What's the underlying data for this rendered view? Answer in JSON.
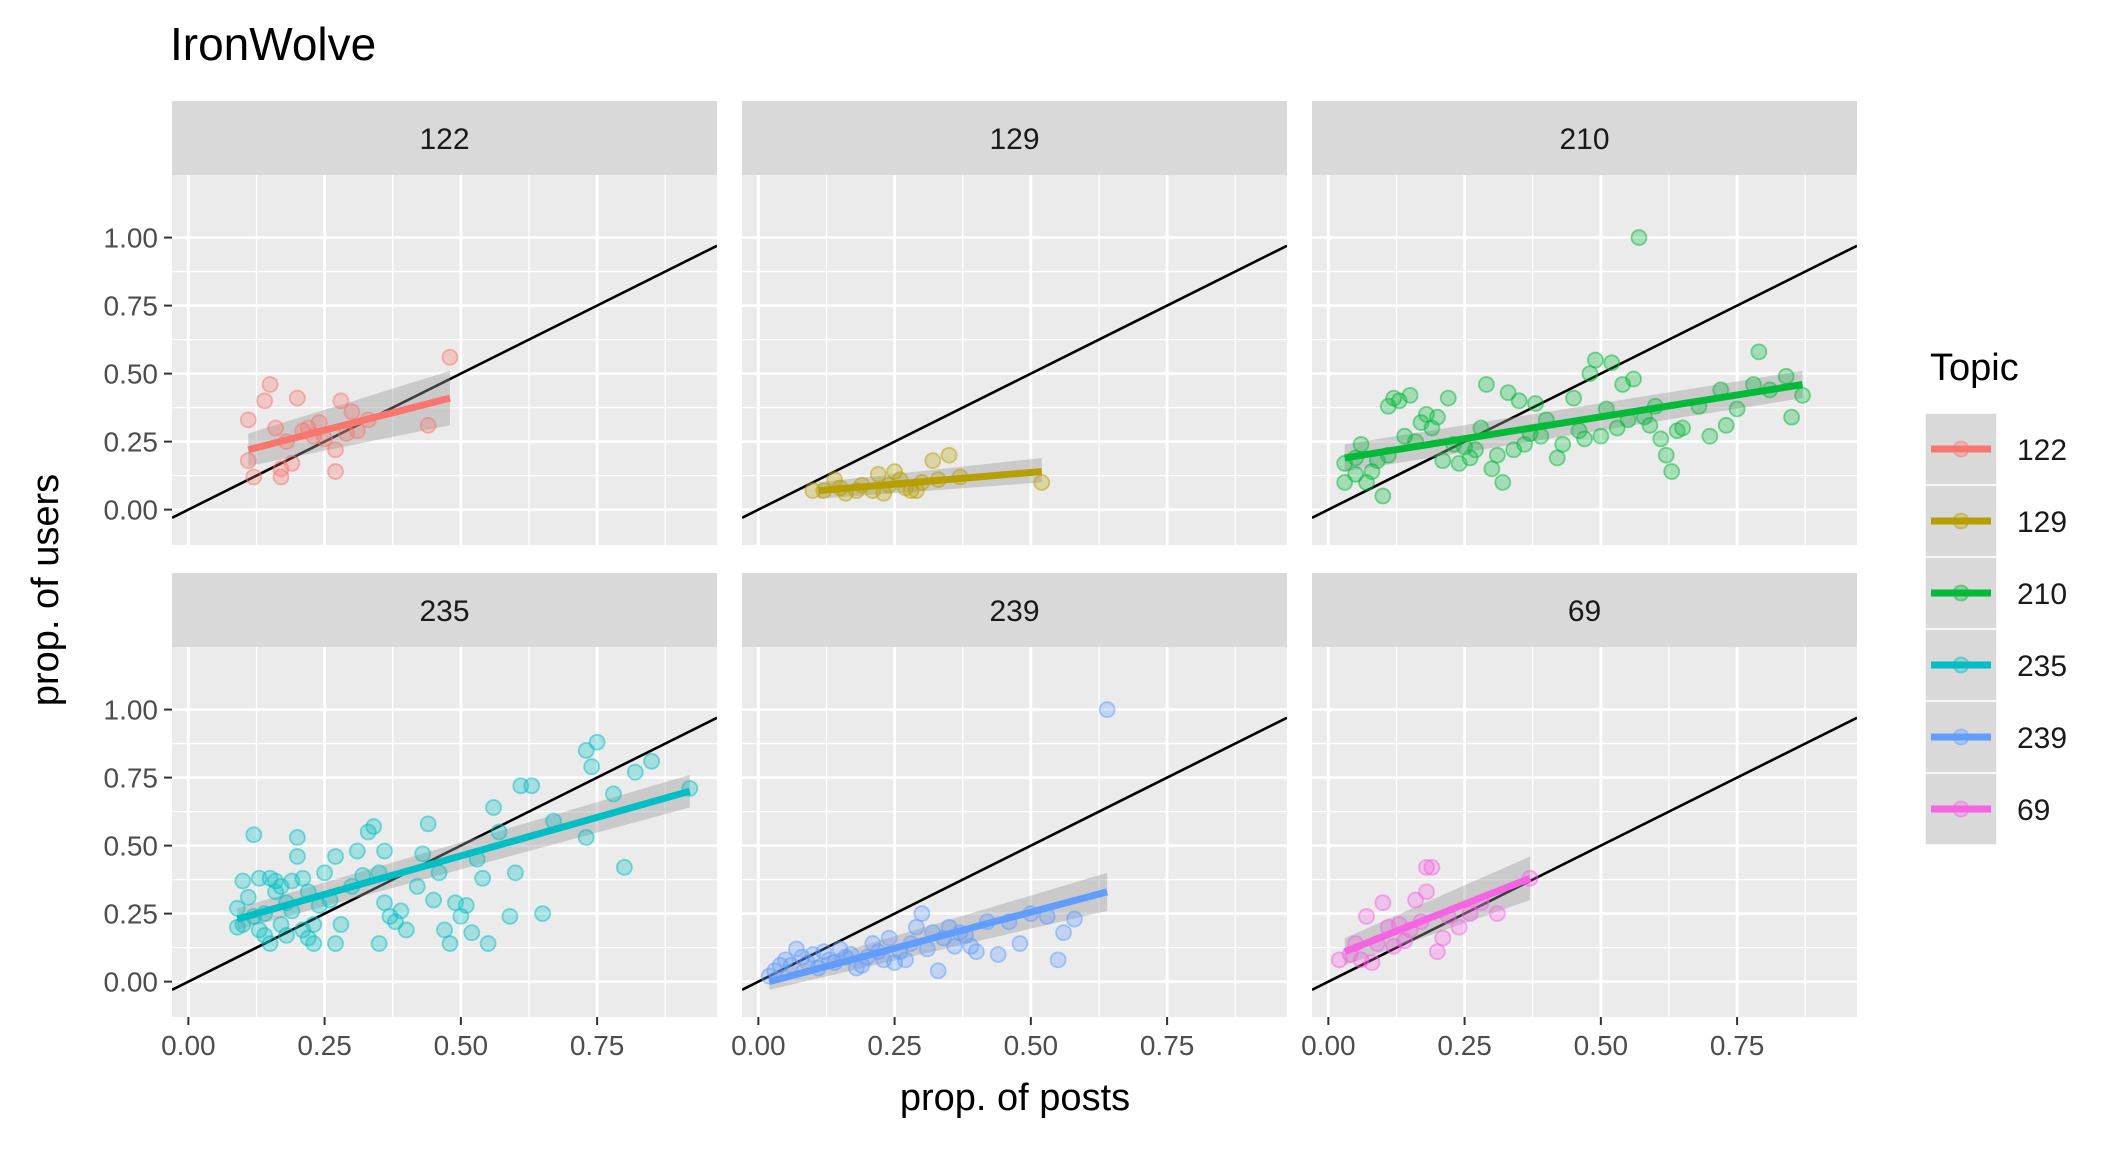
{
  "chart_data": {
    "type": "scatter",
    "title": "IronWolve",
    "xlabel": "prop. of posts",
    "ylabel": "prop. of users",
    "xlim": [
      -0.03,
      0.97
    ],
    "ylim": [
      -0.13,
      1.23
    ],
    "x_ticks": [
      0.0,
      0.25,
      0.5,
      0.75
    ],
    "x_tick_labels": [
      "0.00",
      "0.25",
      "0.50",
      "0.75"
    ],
    "y_ticks": [
      0.0,
      0.25,
      0.5,
      0.75,
      1.0
    ],
    "y_tick_labels": [
      "0.00",
      "0.25",
      "0.50",
      "0.75",
      "1.00"
    ],
    "reference_line": "y = x",
    "grid": true,
    "legend": {
      "title": "Topic",
      "placement": "right",
      "entries": [
        "122",
        "129",
        "210",
        "235",
        "239",
        "69"
      ]
    },
    "panels": [
      {
        "label": "122",
        "color": "#F8766D",
        "fit": {
          "x": [
            0.11,
            0.48
          ],
          "y": [
            0.22,
            0.41
          ],
          "se_lo": [
            0.16,
            0.31
          ],
          "se_hi": [
            0.28,
            0.51
          ]
        },
        "points": [
          [
            0.11,
            0.33
          ],
          [
            0.11,
            0.18
          ],
          [
            0.12,
            0.12
          ],
          [
            0.14,
            0.4
          ],
          [
            0.15,
            0.46
          ],
          [
            0.16,
            0.3
          ],
          [
            0.17,
            0.15
          ],
          [
            0.17,
            0.12
          ],
          [
            0.18,
            0.25
          ],
          [
            0.19,
            0.17
          ],
          [
            0.2,
            0.41
          ],
          [
            0.21,
            0.29
          ],
          [
            0.22,
            0.3
          ],
          [
            0.23,
            0.27
          ],
          [
            0.24,
            0.32
          ],
          [
            0.25,
            0.26
          ],
          [
            0.27,
            0.14
          ],
          [
            0.27,
            0.22
          ],
          [
            0.28,
            0.4
          ],
          [
            0.29,
            0.28
          ],
          [
            0.3,
            0.36
          ],
          [
            0.31,
            0.29
          ],
          [
            0.33,
            0.33
          ],
          [
            0.44,
            0.31
          ],
          [
            0.48,
            0.56
          ]
        ]
      },
      {
        "label": "129",
        "color": "#B79F00",
        "fit": {
          "x": [
            0.11,
            0.52
          ],
          "y": [
            0.07,
            0.14
          ],
          "se_lo": [
            0.04,
            0.1
          ],
          "se_hi": [
            0.1,
            0.19
          ]
        },
        "points": [
          [
            0.1,
            0.07
          ],
          [
            0.12,
            0.07
          ],
          [
            0.14,
            0.11
          ],
          [
            0.15,
            0.08
          ],
          [
            0.16,
            0.06
          ],
          [
            0.18,
            0.07
          ],
          [
            0.19,
            0.09
          ],
          [
            0.21,
            0.07
          ],
          [
            0.22,
            0.13
          ],
          [
            0.23,
            0.06
          ],
          [
            0.24,
            0.09
          ],
          [
            0.25,
            0.14
          ],
          [
            0.26,
            0.11
          ],
          [
            0.27,
            0.08
          ],
          [
            0.28,
            0.07
          ],
          [
            0.29,
            0.07
          ],
          [
            0.3,
            0.1
          ],
          [
            0.32,
            0.18
          ],
          [
            0.33,
            0.11
          ],
          [
            0.35,
            0.2
          ],
          [
            0.37,
            0.12
          ],
          [
            0.52,
            0.1
          ]
        ]
      },
      {
        "label": "210",
        "color": "#00BA38",
        "fit": {
          "x": [
            0.03,
            0.87
          ],
          "y": [
            0.19,
            0.46
          ],
          "se_lo": [
            0.14,
            0.41
          ],
          "se_hi": [
            0.24,
            0.51
          ]
        },
        "points": [
          [
            0.03,
            0.17
          ],
          [
            0.03,
            0.1
          ],
          [
            0.05,
            0.13
          ],
          [
            0.05,
            0.19
          ],
          [
            0.06,
            0.24
          ],
          [
            0.07,
            0.1
          ],
          [
            0.08,
            0.14
          ],
          [
            0.09,
            0.18
          ],
          [
            0.1,
            0.05
          ],
          [
            0.11,
            0.2
          ],
          [
            0.11,
            0.38
          ],
          [
            0.12,
            0.41
          ],
          [
            0.13,
            0.4
          ],
          [
            0.14,
            0.27
          ],
          [
            0.15,
            0.42
          ],
          [
            0.16,
            0.25
          ],
          [
            0.17,
            0.32
          ],
          [
            0.18,
            0.35
          ],
          [
            0.19,
            0.3
          ],
          [
            0.2,
            0.34
          ],
          [
            0.21,
            0.18
          ],
          [
            0.22,
            0.41
          ],
          [
            0.23,
            0.24
          ],
          [
            0.24,
            0.17
          ],
          [
            0.25,
            0.23
          ],
          [
            0.26,
            0.19
          ],
          [
            0.27,
            0.22
          ],
          [
            0.28,
            0.3
          ],
          [
            0.29,
            0.46
          ],
          [
            0.3,
            0.15
          ],
          [
            0.31,
            0.2
          ],
          [
            0.32,
            0.1
          ],
          [
            0.33,
            0.43
          ],
          [
            0.34,
            0.22
          ],
          [
            0.35,
            0.4
          ],
          [
            0.36,
            0.24
          ],
          [
            0.37,
            0.28
          ],
          [
            0.38,
            0.39
          ],
          [
            0.39,
            0.27
          ],
          [
            0.4,
            0.33
          ],
          [
            0.42,
            0.19
          ],
          [
            0.43,
            0.24
          ],
          [
            0.45,
            0.41
          ],
          [
            0.46,
            0.29
          ],
          [
            0.47,
            0.26
          ],
          [
            0.48,
            0.5
          ],
          [
            0.49,
            0.55
          ],
          [
            0.5,
            0.27
          ],
          [
            0.51,
            0.37
          ],
          [
            0.52,
            0.54
          ],
          [
            0.53,
            0.3
          ],
          [
            0.54,
            0.46
          ],
          [
            0.55,
            0.33
          ],
          [
            0.56,
            0.48
          ],
          [
            0.57,
            1.0
          ],
          [
            0.58,
            0.34
          ],
          [
            0.59,
            0.31
          ],
          [
            0.6,
            0.38
          ],
          [
            0.61,
            0.26
          ],
          [
            0.62,
            0.2
          ],
          [
            0.63,
            0.14
          ],
          [
            0.64,
            0.29
          ],
          [
            0.65,
            0.3
          ],
          [
            0.68,
            0.38
          ],
          [
            0.7,
            0.27
          ],
          [
            0.72,
            0.44
          ],
          [
            0.73,
            0.31
          ],
          [
            0.75,
            0.37
          ],
          [
            0.78,
            0.46
          ],
          [
            0.79,
            0.58
          ],
          [
            0.81,
            0.44
          ],
          [
            0.84,
            0.49
          ],
          [
            0.85,
            0.34
          ],
          [
            0.87,
            0.42
          ]
        ]
      },
      {
        "label": "235",
        "color": "#00BFC4",
        "fit": {
          "x": [
            0.09,
            0.92
          ],
          "y": [
            0.23,
            0.7
          ],
          "se_lo": [
            0.19,
            0.64
          ],
          "se_hi": [
            0.27,
            0.76
          ]
        },
        "points": [
          [
            0.09,
            0.27
          ],
          [
            0.09,
            0.2
          ],
          [
            0.1,
            0.37
          ],
          [
            0.1,
            0.21
          ],
          [
            0.11,
            0.31
          ],
          [
            0.12,
            0.54
          ],
          [
            0.12,
            0.24
          ],
          [
            0.13,
            0.38
          ],
          [
            0.13,
            0.19
          ],
          [
            0.14,
            0.25
          ],
          [
            0.14,
            0.17
          ],
          [
            0.15,
            0.38
          ],
          [
            0.15,
            0.14
          ],
          [
            0.16,
            0.37
          ],
          [
            0.16,
            0.33
          ],
          [
            0.17,
            0.21
          ],
          [
            0.17,
            0.35
          ],
          [
            0.18,
            0.17
          ],
          [
            0.18,
            0.29
          ],
          [
            0.19,
            0.37
          ],
          [
            0.19,
            0.26
          ],
          [
            0.2,
            0.46
          ],
          [
            0.2,
            0.53
          ],
          [
            0.21,
            0.38
          ],
          [
            0.21,
            0.19
          ],
          [
            0.22,
            0.33
          ],
          [
            0.22,
            0.16
          ],
          [
            0.23,
            0.14
          ],
          [
            0.23,
            0.21
          ],
          [
            0.24,
            0.28
          ],
          [
            0.25,
            0.4
          ],
          [
            0.26,
            0.3
          ],
          [
            0.27,
            0.14
          ],
          [
            0.27,
            0.46
          ],
          [
            0.28,
            0.21
          ],
          [
            0.3,
            0.35
          ],
          [
            0.31,
            0.48
          ],
          [
            0.32,
            0.39
          ],
          [
            0.33,
            0.55
          ],
          [
            0.34,
            0.57
          ],
          [
            0.35,
            0.14
          ],
          [
            0.35,
            0.4
          ],
          [
            0.36,
            0.29
          ],
          [
            0.36,
            0.48
          ],
          [
            0.37,
            0.24
          ],
          [
            0.38,
            0.22
          ],
          [
            0.39,
            0.26
          ],
          [
            0.4,
            0.19
          ],
          [
            0.42,
            0.35
          ],
          [
            0.43,
            0.47
          ],
          [
            0.44,
            0.58
          ],
          [
            0.45,
            0.3
          ],
          [
            0.46,
            0.4
          ],
          [
            0.47,
            0.19
          ],
          [
            0.48,
            0.14
          ],
          [
            0.49,
            0.29
          ],
          [
            0.5,
            0.24
          ],
          [
            0.51,
            0.28
          ],
          [
            0.52,
            0.18
          ],
          [
            0.53,
            0.45
          ],
          [
            0.54,
            0.38
          ],
          [
            0.55,
            0.14
          ],
          [
            0.56,
            0.64
          ],
          [
            0.57,
            0.55
          ],
          [
            0.59,
            0.24
          ],
          [
            0.6,
            0.4
          ],
          [
            0.61,
            0.72
          ],
          [
            0.63,
            0.72
          ],
          [
            0.65,
            0.25
          ],
          [
            0.67,
            0.59
          ],
          [
            0.73,
            0.53
          ],
          [
            0.73,
            0.85
          ],
          [
            0.74,
            0.79
          ],
          [
            0.75,
            0.88
          ],
          [
            0.78,
            0.69
          ],
          [
            0.8,
            0.42
          ],
          [
            0.82,
            0.77
          ],
          [
            0.85,
            0.81
          ],
          [
            0.92,
            0.71
          ]
        ]
      },
      {
        "label": "239",
        "color": "#619CFF",
        "fit": {
          "x": [
            0.02,
            0.64
          ],
          "y": [
            0.0,
            0.33
          ],
          "se_lo": [
            -0.03,
            0.26
          ],
          "se_hi": [
            0.03,
            0.4
          ]
        },
        "points": [
          [
            0.02,
            0.02
          ],
          [
            0.03,
            0.04
          ],
          [
            0.04,
            0.06
          ],
          [
            0.05,
            0.08
          ],
          [
            0.06,
            0.06
          ],
          [
            0.07,
            0.12
          ],
          [
            0.08,
            0.09
          ],
          [
            0.09,
            0.07
          ],
          [
            0.1,
            0.1
          ],
          [
            0.11,
            0.05
          ],
          [
            0.12,
            0.11
          ],
          [
            0.13,
            0.08
          ],
          [
            0.14,
            0.07
          ],
          [
            0.15,
            0.12
          ],
          [
            0.16,
            0.09
          ],
          [
            0.17,
            0.1
          ],
          [
            0.18,
            0.05
          ],
          [
            0.19,
            0.06
          ],
          [
            0.2,
            0.09
          ],
          [
            0.21,
            0.14
          ],
          [
            0.22,
            0.11
          ],
          [
            0.23,
            0.08
          ],
          [
            0.24,
            0.16
          ],
          [
            0.25,
            0.07
          ],
          [
            0.26,
            0.11
          ],
          [
            0.27,
            0.08
          ],
          [
            0.28,
            0.14
          ],
          [
            0.29,
            0.2
          ],
          [
            0.3,
            0.25
          ],
          [
            0.31,
            0.12
          ],
          [
            0.32,
            0.18
          ],
          [
            0.33,
            0.04
          ],
          [
            0.34,
            0.16
          ],
          [
            0.35,
            0.2
          ],
          [
            0.36,
            0.13
          ],
          [
            0.37,
            0.18
          ],
          [
            0.38,
            0.17
          ],
          [
            0.39,
            0.13
          ],
          [
            0.4,
            0.11
          ],
          [
            0.42,
            0.22
          ],
          [
            0.44,
            0.1
          ],
          [
            0.46,
            0.22
          ],
          [
            0.48,
            0.14
          ],
          [
            0.5,
            0.25
          ],
          [
            0.53,
            0.24
          ],
          [
            0.55,
            0.08
          ],
          [
            0.56,
            0.18
          ],
          [
            0.58,
            0.23
          ],
          [
            0.64,
            1.0
          ]
        ]
      },
      {
        "label": "69",
        "color": "#F564E3",
        "fit": {
          "x": [
            0.03,
            0.37
          ],
          "y": [
            0.11,
            0.38
          ],
          "se_lo": [
            0.06,
            0.3
          ],
          "se_hi": [
            0.16,
            0.46
          ]
        },
        "points": [
          [
            0.02,
            0.08
          ],
          [
            0.04,
            0.1
          ],
          [
            0.05,
            0.14
          ],
          [
            0.06,
            0.08
          ],
          [
            0.07,
            0.24
          ],
          [
            0.08,
            0.07
          ],
          [
            0.09,
            0.14
          ],
          [
            0.1,
            0.29
          ],
          [
            0.11,
            0.2
          ],
          [
            0.12,
            0.13
          ],
          [
            0.13,
            0.21
          ],
          [
            0.14,
            0.15
          ],
          [
            0.15,
            0.19
          ],
          [
            0.16,
            0.3
          ],
          [
            0.17,
            0.22
          ],
          [
            0.18,
            0.42
          ],
          [
            0.18,
            0.33
          ],
          [
            0.19,
            0.42
          ],
          [
            0.2,
            0.11
          ],
          [
            0.21,
            0.16
          ],
          [
            0.22,
            0.24
          ],
          [
            0.24,
            0.2
          ],
          [
            0.26,
            0.25
          ],
          [
            0.28,
            0.29
          ],
          [
            0.31,
            0.25
          ],
          [
            0.37,
            0.38
          ]
        ]
      }
    ]
  }
}
